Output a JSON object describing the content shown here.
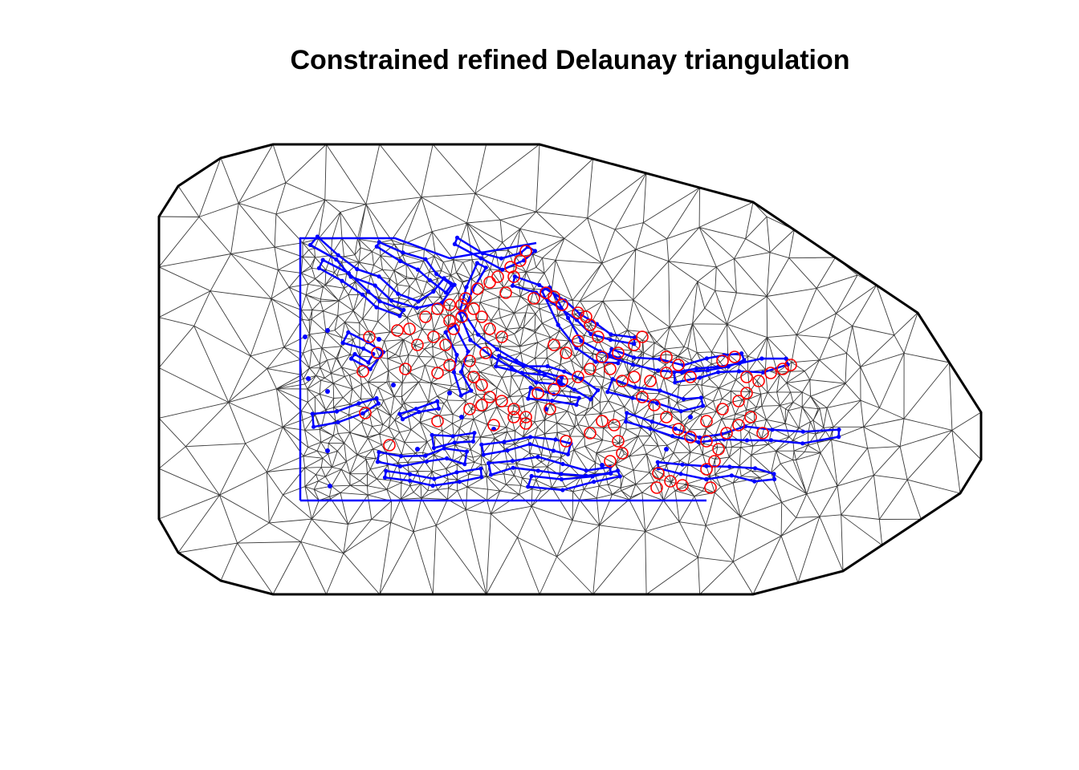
{
  "title": "Constrained refined Delaunay triangulation",
  "colors": {
    "mesh": "#3a3a3a",
    "boundary": "#000000",
    "constraint": "#0000ff",
    "observation": "#ff0000",
    "background": "#ffffff"
  },
  "legend": null
}
